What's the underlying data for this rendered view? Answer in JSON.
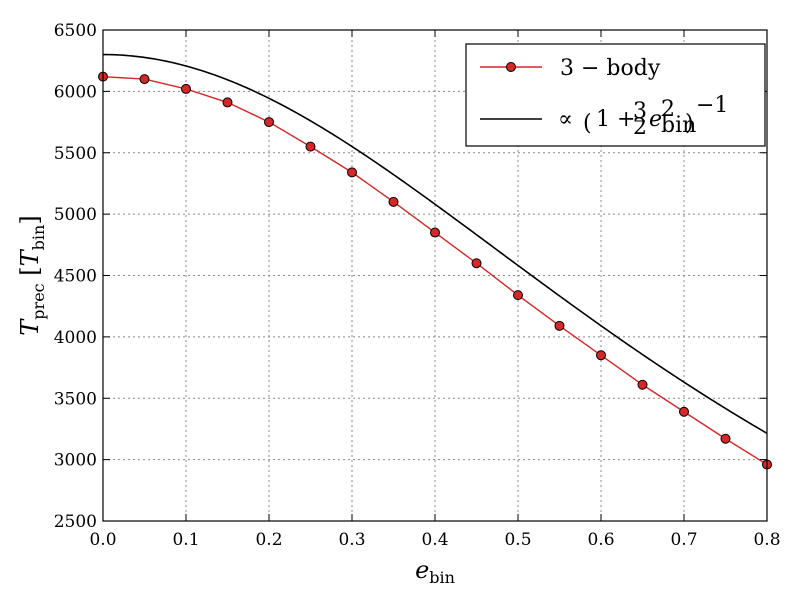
{
  "chart_data": {
    "type": "line",
    "title": "",
    "xlabel": {
      "main": "e",
      "sub": "bin"
    },
    "ylabel": {
      "main": "T",
      "sub": "prec",
      "bracket_main": "T",
      "bracket_sub": "bin"
    },
    "xlim": [
      0.0,
      0.8
    ],
    "ylim": [
      2500,
      6500
    ],
    "x_ticks": [
      0.0,
      0.1,
      0.2,
      0.3,
      0.4,
      0.5,
      0.6,
      0.7,
      0.8
    ],
    "x_tick_labels": [
      "0.0",
      "0.1",
      "0.2",
      "0.3",
      "0.4",
      "0.5",
      "0.6",
      "0.7",
      "0.8"
    ],
    "y_ticks": [
      2500,
      3000,
      3500,
      4000,
      4500,
      5000,
      5500,
      6000,
      6500
    ],
    "y_tick_labels": [
      "2500",
      "3000",
      "3500",
      "4000",
      "4500",
      "5000",
      "5500",
      "6000",
      "6500"
    ],
    "grid": true,
    "legend_position": "top-right",
    "series": [
      {
        "name": "3 − body",
        "style": "line-with-markers",
        "color": "#d62728",
        "marker_color": "#d62728",
        "x": [
          0.0,
          0.05,
          0.1,
          0.15,
          0.2,
          0.25,
          0.3,
          0.35,
          0.4,
          0.45,
          0.5,
          0.55,
          0.6,
          0.65,
          0.7,
          0.75,
          0.8
        ],
        "y": [
          6120,
          6100,
          6020,
          5910,
          5750,
          5550,
          5340,
          5100,
          4850,
          4600,
          4340,
          4090,
          3850,
          3610,
          3390,
          3170,
          2960
        ]
      },
      {
        "name": "∝ (1 + 3/2 e²bin)⁻¹",
        "style": "line",
        "color": "#000000",
        "formula": {
          "amplitude": 6300,
          "coefficient": 1.5
        }
      }
    ]
  }
}
